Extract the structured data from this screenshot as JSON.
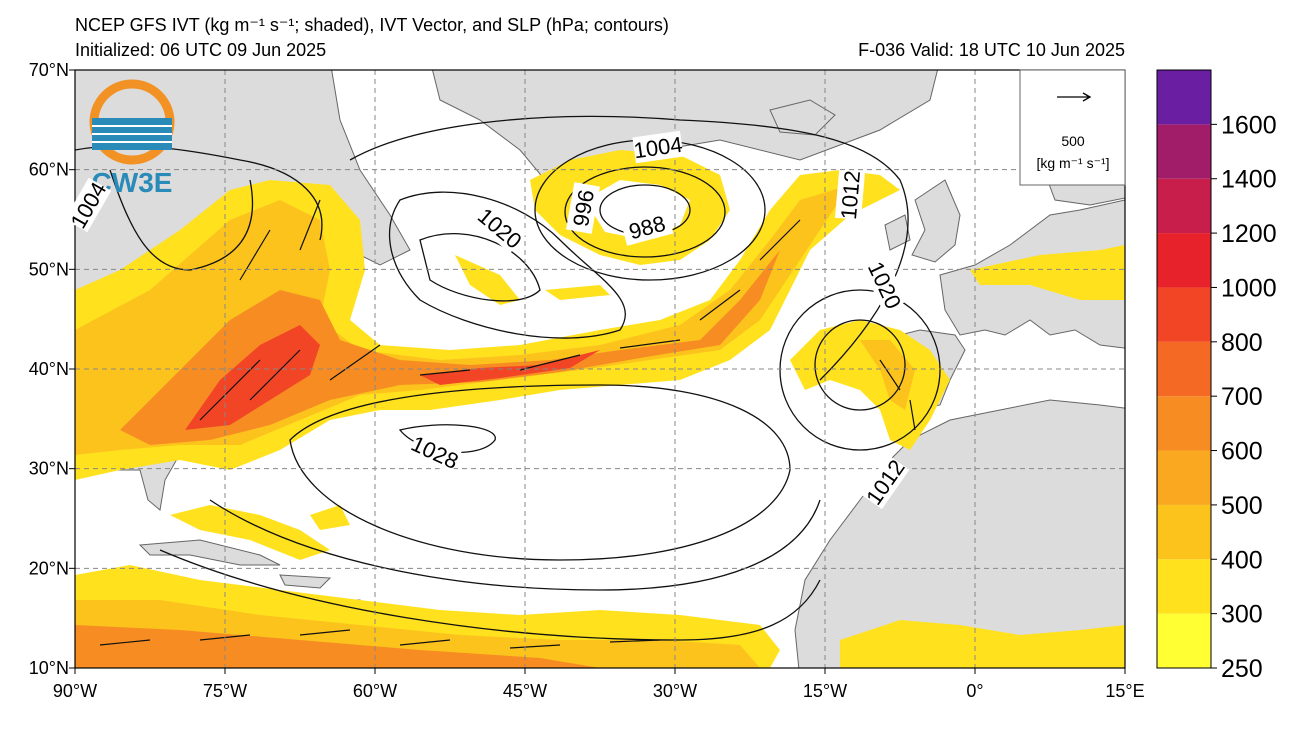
{
  "header": {
    "title": "NCEP GFS IVT (kg m⁻¹ s⁻¹; shaded), IVT Vector, and SLP (hPa; contours)",
    "initialized": "Initialized: 06 UTC 09 Jun 2025",
    "valid": "F-036  Valid: 18 UTC 10 Jun 2025"
  },
  "logo": "CW3E",
  "map": {
    "lonlim": [
      -90,
      15
    ],
    "latlim": [
      10,
      70
    ],
    "grid": true,
    "lon_ticks": [
      {
        "value": -90,
        "label": "90°W"
      },
      {
        "value": -75,
        "label": "75°W"
      },
      {
        "value": -60,
        "label": "60°W"
      },
      {
        "value": -45,
        "label": "45°W"
      },
      {
        "value": -30,
        "label": "30°W"
      },
      {
        "value": -15,
        "label": "15°W"
      },
      {
        "value": 0,
        "label": "0°"
      },
      {
        "value": 15,
        "label": "15°E"
      }
    ],
    "lat_ticks": [
      {
        "value": 10,
        "label": "10°N"
      },
      {
        "value": 20,
        "label": "20°N"
      },
      {
        "value": 30,
        "label": "30°N"
      },
      {
        "value": 40,
        "label": "40°N"
      },
      {
        "value": 50,
        "label": "50°N"
      },
      {
        "value": 60,
        "label": "60°N"
      },
      {
        "value": 70,
        "label": "70°N"
      }
    ],
    "contour_labels": [
      1004,
      1004,
      996,
      988,
      1020,
      1012,
      1020,
      1028,
      1012
    ]
  },
  "vector_key": {
    "value": 500,
    "units": "[kg m⁻¹ s⁻¹]"
  },
  "colorbar": {
    "levels": [
      250,
      300,
      400,
      500,
      600,
      700,
      800,
      1000,
      1200,
      1400,
      1600,
      1800
    ],
    "colors": [
      "#ffff33",
      "#ffe11e",
      "#fcc31d",
      "#f9a81f",
      "#f78d22",
      "#f46a24",
      "#f24526",
      "#e8222a",
      "#c81e4b",
      "#a11d6a",
      "#6a1fa3"
    ],
    "ticks": [
      250,
      300,
      400,
      500,
      600,
      700,
      800,
      1000,
      1200,
      1400,
      1600
    ]
  }
}
